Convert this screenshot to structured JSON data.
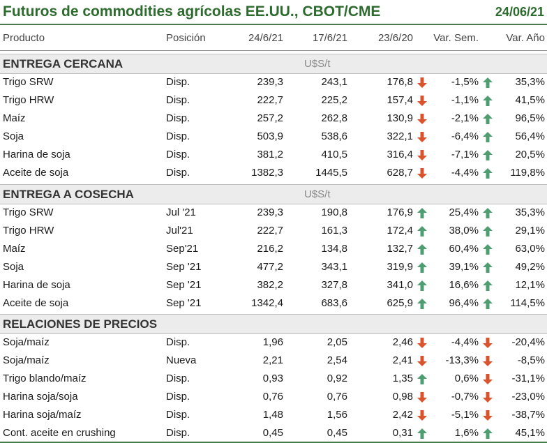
{
  "title": "Futuros de commodities agrícolas EE.UU., CBOT/CME",
  "date": "24/06/21",
  "columns": [
    "Producto",
    "Posición",
    "24/6/21",
    "17/6/21",
    "23/6/20",
    "Var. Sem.",
    "Var. Año"
  ],
  "colors": {
    "title": "#2e6b2e",
    "up": "#4f9e72",
    "down": "#d9532c",
    "section_bg": "#ececec"
  },
  "sections": [
    {
      "name": "ENTREGA CERCANA",
      "unit": "U$S/t",
      "rows": [
        {
          "producto": "Trigo SRW",
          "posicion": "Disp.",
          "v1": "239,3",
          "v2": "243,1",
          "v3": "176,8",
          "ws": "-1,5%",
          "ya": "35,3%",
          "arrow_ws": "down",
          "arrow_ya": "up"
        },
        {
          "producto": "Trigo HRW",
          "posicion": "Disp.",
          "v1": "222,7",
          "v2": "225,2",
          "v3": "157,4",
          "ws": "-1,1%",
          "ya": "41,5%",
          "arrow_ws": "down",
          "arrow_ya": "up"
        },
        {
          "producto": "Maíz",
          "posicion": "Disp.",
          "v1": "257,2",
          "v2": "262,8",
          "v3": "130,9",
          "ws": "-2,1%",
          "ya": "96,5%",
          "arrow_ws": "down",
          "arrow_ya": "up"
        },
        {
          "producto": "Soja",
          "posicion": "Disp.",
          "v1": "503,9",
          "v2": "538,6",
          "v3": "322,1",
          "ws": "-6,4%",
          "ya": "56,4%",
          "arrow_ws": "down",
          "arrow_ya": "up"
        },
        {
          "producto": "Harina de soja",
          "posicion": "Disp.",
          "v1": "381,2",
          "v2": "410,5",
          "v3": "316,4",
          "ws": "-7,1%",
          "ya": "20,5%",
          "arrow_ws": "down",
          "arrow_ya": "up"
        },
        {
          "producto": "Aceite de soja",
          "posicion": "Disp.",
          "v1": "1382,3",
          "v2": "1445,5",
          "v3": "628,7",
          "ws": "-4,4%",
          "ya": "119,8%",
          "arrow_ws": "down",
          "arrow_ya": "up"
        }
      ]
    },
    {
      "name": "ENTREGA A COSECHA",
      "unit": "U$S/t",
      "rows": [
        {
          "producto": "Trigo SRW",
          "posicion": "Jul '21",
          "v1": "239,3",
          "v2": "190,8",
          "v3": "176,9",
          "ws": "25,4%",
          "ya": "35,3%",
          "arrow_ws": "up",
          "arrow_ya": "up"
        },
        {
          "producto": "Trigo HRW",
          "posicion": "Jul'21",
          "v1": "222,7",
          "v2": "161,3",
          "v3": "172,4",
          "ws": "38,0%",
          "ya": "29,1%",
          "arrow_ws": "up",
          "arrow_ya": "up"
        },
        {
          "producto": "Maíz",
          "posicion": "Sep'21",
          "v1": "216,2",
          "v2": "134,8",
          "v3": "132,7",
          "ws": "60,4%",
          "ya": "63,0%",
          "arrow_ws": "up",
          "arrow_ya": "up"
        },
        {
          "producto": "Soja",
          "posicion": "Sep '21",
          "v1": "477,2",
          "v2": "343,1",
          "v3": "319,9",
          "ws": "39,1%",
          "ya": "49,2%",
          "arrow_ws": "up",
          "arrow_ya": "up"
        },
        {
          "producto": "Harina de soja",
          "posicion": "Sep '21",
          "v1": "382,2",
          "v2": "327,8",
          "v3": "341,0",
          "ws": "16,6%",
          "ya": "12,1%",
          "arrow_ws": "up",
          "arrow_ya": "up"
        },
        {
          "producto": "Aceite de soja",
          "posicion": "Sep '21",
          "v1": "1342,4",
          "v2": "683,6",
          "v3": "625,9",
          "ws": "96,4%",
          "ya": "114,5%",
          "arrow_ws": "up",
          "arrow_ya": "up"
        }
      ]
    },
    {
      "name": "RELACIONES DE PRECIOS",
      "unit": "",
      "rows": [
        {
          "producto": "Soja/maíz",
          "posicion": "Disp.",
          "v1": "1,96",
          "v2": "2,05",
          "v3": "2,46",
          "ws": "-4,4%",
          "ya": "-20,4%",
          "arrow_ws": "down",
          "arrow_ya": "down"
        },
        {
          "producto": "Soja/maíz",
          "posicion": "Nueva",
          "v1": "2,21",
          "v2": "2,54",
          "v3": "2,41",
          "ws": "-13,3%",
          "ya": "-8,5%",
          "arrow_ws": "down",
          "arrow_ya": "down"
        },
        {
          "producto": "Trigo blando/maíz",
          "posicion": "Disp.",
          "v1": "0,93",
          "v2": "0,92",
          "v3": "1,35",
          "ws": "0,6%",
          "ya": "-31,1%",
          "arrow_ws": "up",
          "arrow_ya": "down"
        },
        {
          "producto": "Harina soja/soja",
          "posicion": "Disp.",
          "v1": "0,76",
          "v2": "0,76",
          "v3": "0,98",
          "ws": "-0,7%",
          "ya": "-23,0%",
          "arrow_ws": "down",
          "arrow_ya": "down"
        },
        {
          "producto": "Harina soja/maíz",
          "posicion": "Disp.",
          "v1": "1,48",
          "v2": "1,56",
          "v3": "2,42",
          "ws": "-5,1%",
          "ya": "-38,7%",
          "arrow_ws": "down",
          "arrow_ya": "down"
        },
        {
          "producto": "Cont. aceite en crushing",
          "posicion": "Disp.",
          "v1": "0,45",
          "v2": "0,45",
          "v3": "0,31",
          "ws": "1,6%",
          "ya": "45,1%",
          "arrow_ws": "up",
          "arrow_ya": "up"
        }
      ]
    }
  ]
}
